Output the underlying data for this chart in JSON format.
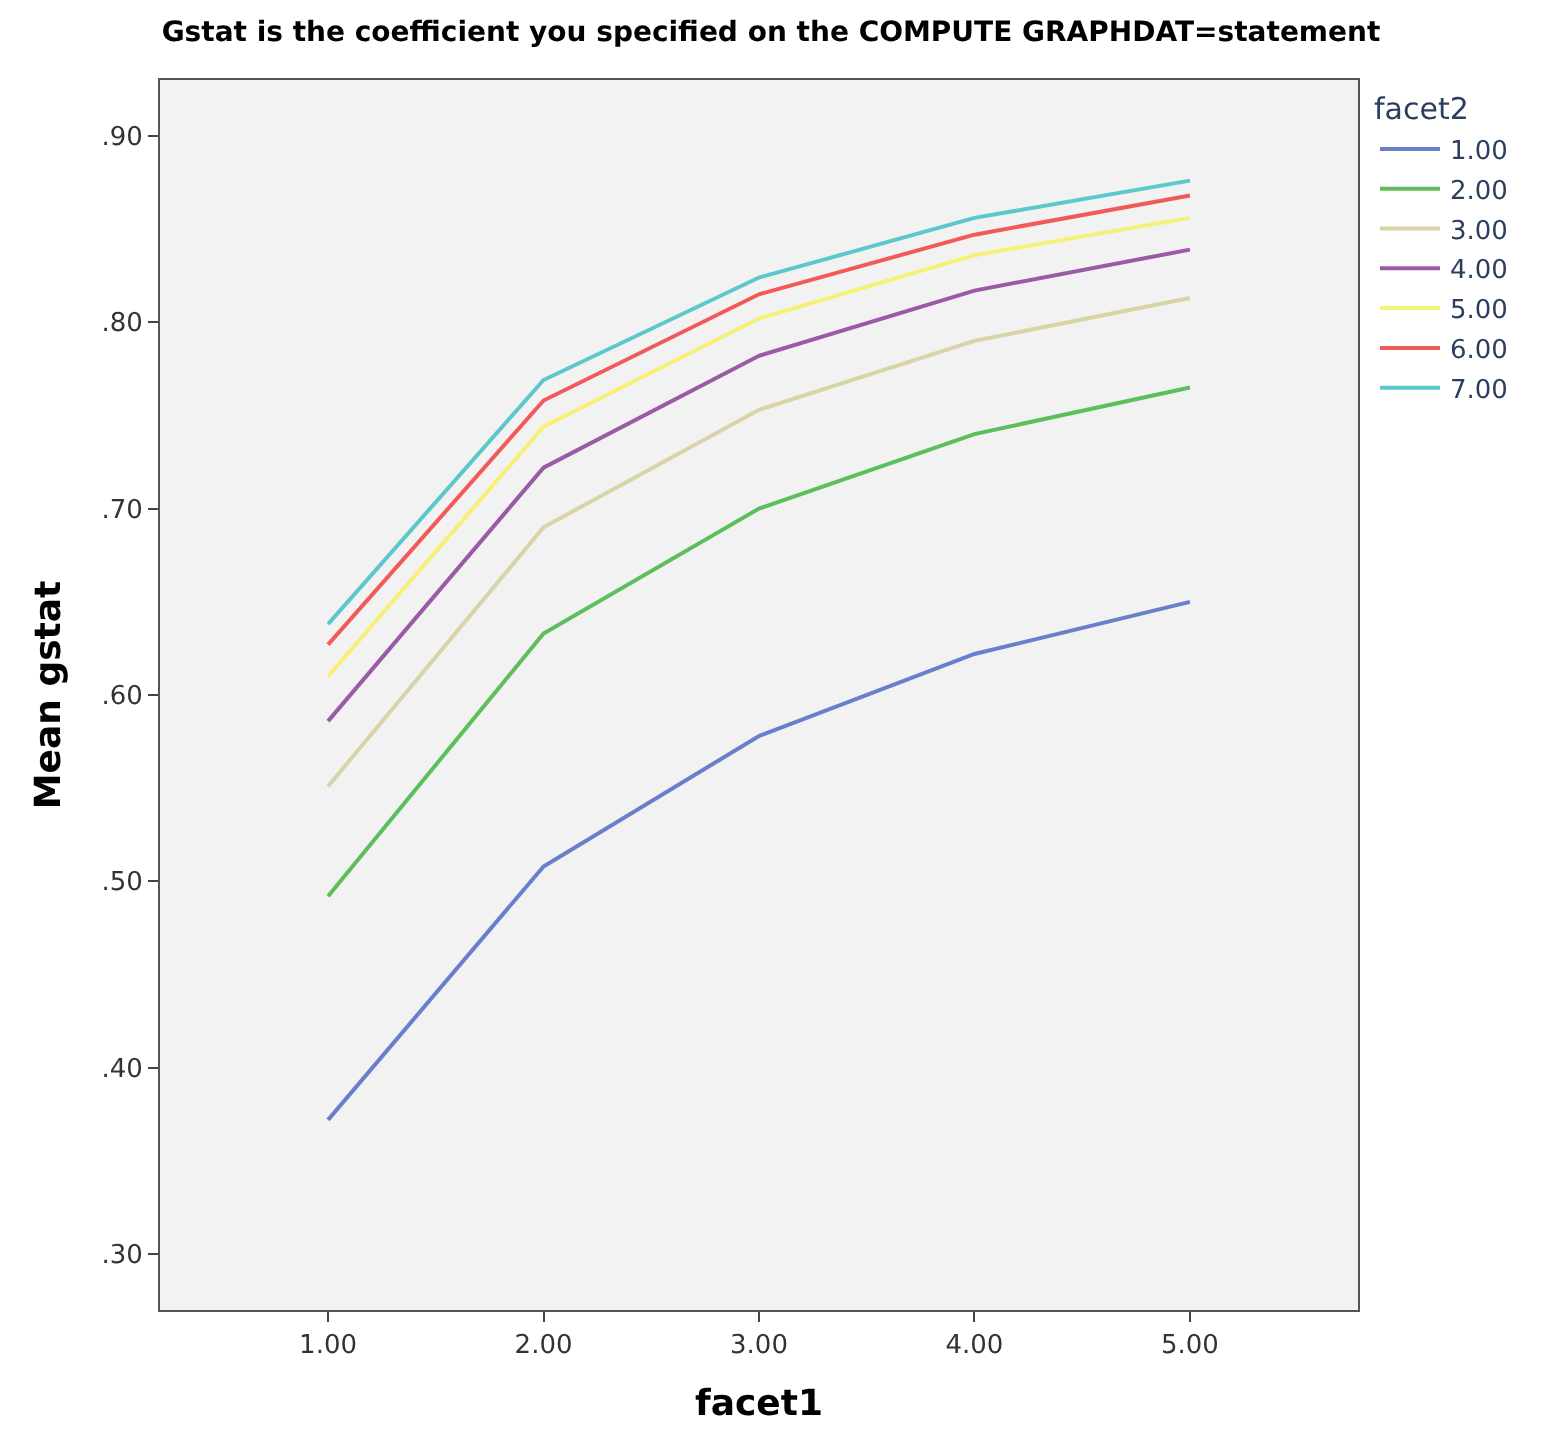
{
  "chart_data": {
    "type": "line",
    "title": "Gstat is the coefficient you specified on the COMPUTE GRAPHDAT=statement",
    "xlabel": "facet1",
    "ylabel": "Mean gstat",
    "legend_title": "facet2",
    "x": [
      1,
      2,
      3,
      4,
      5
    ],
    "series": [
      {
        "name": "1.00",
        "color": "#6a7fcb",
        "values": [
          0.372,
          0.508,
          0.578,
          0.622,
          0.65
        ]
      },
      {
        "name": "2.00",
        "color": "#5cbf5c",
        "values": [
          0.492,
          0.633,
          0.7,
          0.74,
          0.765
        ]
      },
      {
        "name": "3.00",
        "color": "#d9d3a8",
        "values": [
          0.551,
          0.69,
          0.753,
          0.79,
          0.813
        ]
      },
      {
        "name": "4.00",
        "color": "#9b5aa6",
        "values": [
          0.586,
          0.722,
          0.782,
          0.817,
          0.839
        ]
      },
      {
        "name": "5.00",
        "color": "#f7f076",
        "values": [
          0.61,
          0.744,
          0.802,
          0.836,
          0.856
        ]
      },
      {
        "name": "6.00",
        "color": "#f25a5a",
        "values": [
          0.627,
          0.758,
          0.815,
          0.847,
          0.868
        ]
      },
      {
        "name": "7.00",
        "color": "#5cc8cc",
        "values": [
          0.638,
          0.769,
          0.824,
          0.856,
          0.876
        ]
      }
    ],
    "xlim": [
      0.22,
      5.78
    ],
    "xticks": [
      {
        "value": 1,
        "label": "1.00"
      },
      {
        "value": 2,
        "label": "2.00"
      },
      {
        "value": 3,
        "label": "3.00"
      },
      {
        "value": 4,
        "label": "4.00"
      },
      {
        "value": 5,
        "label": "5.00"
      }
    ],
    "ylim": [
      0.27,
      0.93
    ],
    "yticks": [
      {
        "value": 0.3,
        "label": ".30"
      },
      {
        "value": 0.4,
        "label": ".40"
      },
      {
        "value": 0.5,
        "label": ".50"
      },
      {
        "value": 0.6,
        "label": ".60"
      },
      {
        "value": 0.7,
        "label": ".70"
      },
      {
        "value": 0.8,
        "label": ".80"
      },
      {
        "value": 0.9,
        "label": ".90"
      }
    ],
    "grid": false,
    "legend": "right",
    "marker": "none",
    "line_style": "solid"
  }
}
